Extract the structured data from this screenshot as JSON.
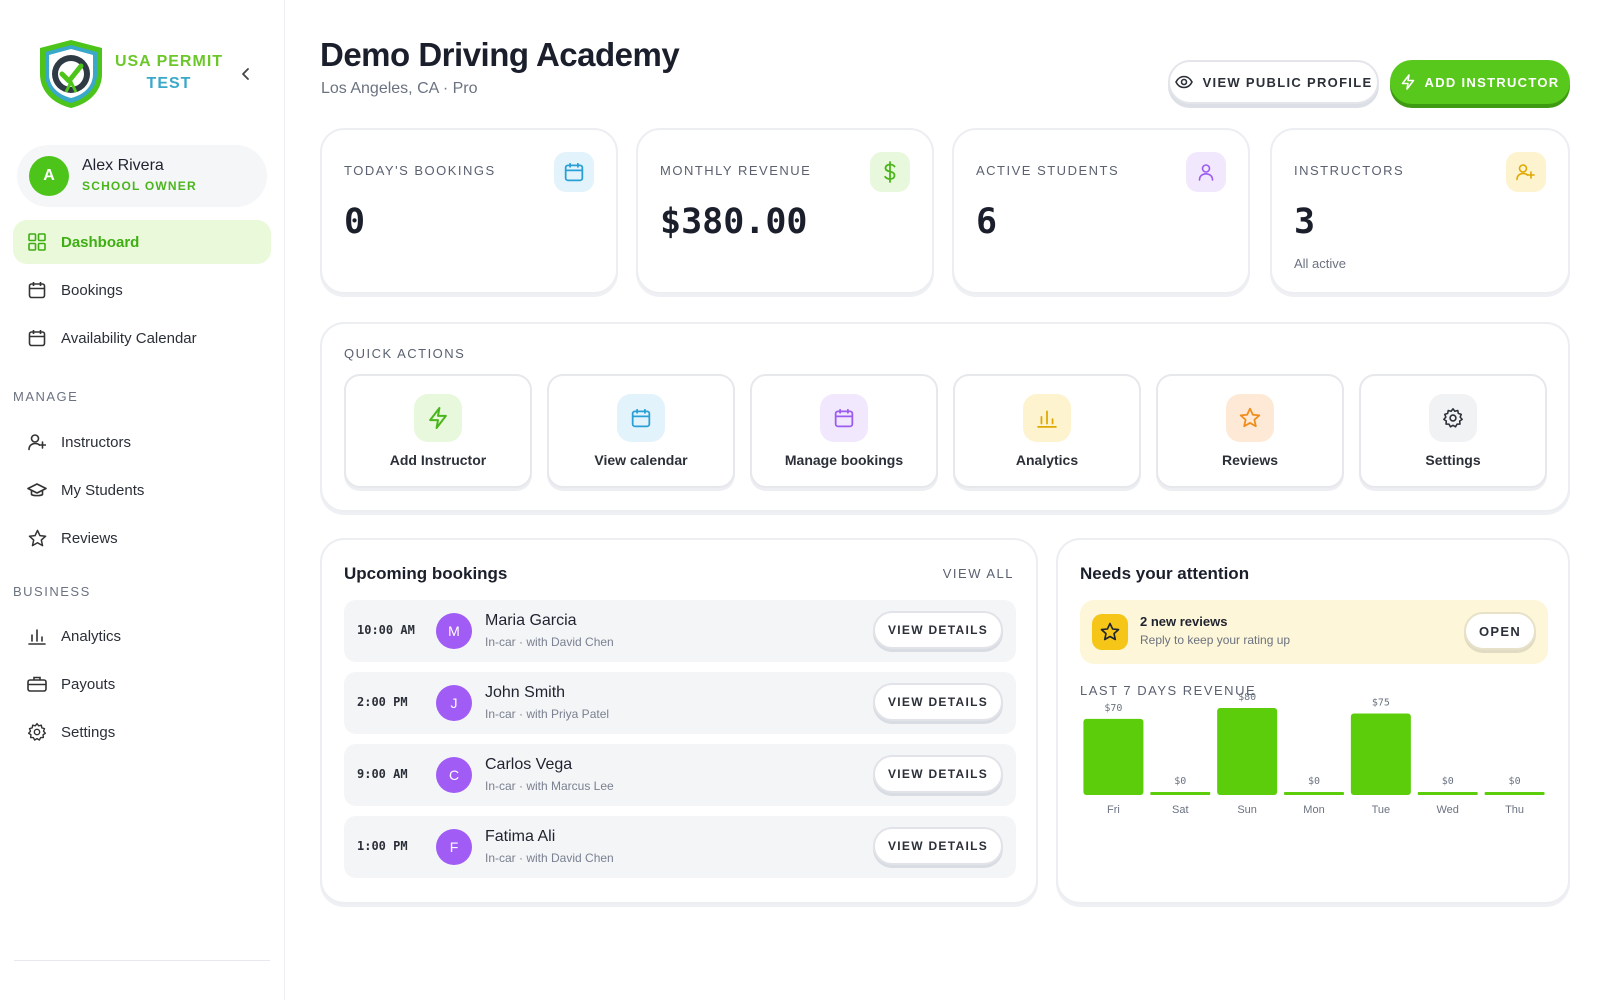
{
  "brand": {
    "line1": "USA PERMIT",
    "line2": "TEST"
  },
  "user": {
    "initial": "A",
    "name": "Alex Rivera",
    "role": "SCHOOL OWNER"
  },
  "nav": {
    "main": [
      {
        "label": "Dashboard",
        "icon": "grid-icon",
        "active": true
      },
      {
        "label": "Bookings",
        "icon": "calendar-icon"
      },
      {
        "label": "Availability Calendar",
        "icon": "calendar-icon"
      }
    ],
    "manage_heading": "MANAGE",
    "manage": [
      {
        "label": "Instructors",
        "icon": "user-plus-icon"
      },
      {
        "label": "My Students",
        "icon": "graduation-cap-icon"
      },
      {
        "label": "Reviews",
        "icon": "star-icon"
      }
    ],
    "business_heading": "BUSINESS",
    "business": [
      {
        "label": "Analytics",
        "icon": "bar-chart-icon"
      },
      {
        "label": "Payouts",
        "icon": "briefcase-icon"
      },
      {
        "label": "Settings",
        "icon": "gear-icon"
      }
    ]
  },
  "header": {
    "title": "Demo Driving Academy",
    "subtitle": "Los Angeles, CA · Pro",
    "view_profile": "VIEW PUBLIC PROFILE",
    "add_instructor": "ADD INSTRUCTOR"
  },
  "stats": [
    {
      "label": "TODAY'S BOOKINGS",
      "value": "0",
      "note": "",
      "icon": "calendar-icon",
      "color": "#2a9fd6",
      "bg": "#e3f3fb"
    },
    {
      "label": "MONTHLY REVENUE",
      "value": "$380.00",
      "note": "",
      "icon": "dollar-icon",
      "color": "#4bb61c",
      "bg": "#e8f8dc"
    },
    {
      "label": "ACTIVE STUDENTS",
      "value": "6",
      "note": "",
      "icon": "user-icon",
      "color": "#9b5cf0",
      "bg": "#f1e8fd"
    },
    {
      "label": "INSTRUCTORS",
      "value": "3",
      "note": "All active",
      "icon": "user-plus-icon",
      "color": "#e0a800",
      "bg": "#fdf4cf"
    }
  ],
  "quick_actions": {
    "title": "QUICK ACTIONS",
    "items": [
      {
        "label": "Add Instructor",
        "icon": "lightning-icon",
        "color": "#4bb61c",
        "bg": "#e8f8dc"
      },
      {
        "label": "View calendar",
        "icon": "calendar-icon",
        "color": "#2a9fd6",
        "bg": "#e3f3fb"
      },
      {
        "label": "Manage bookings",
        "icon": "calendar-icon",
        "color": "#9b5cf0",
        "bg": "#f1e8fd"
      },
      {
        "label": "Analytics",
        "icon": "bar-chart-icon",
        "color": "#e0a800",
        "bg": "#fdf4cf"
      },
      {
        "label": "Reviews",
        "icon": "star-icon",
        "color": "#f08c1a",
        "bg": "#fde9d6"
      },
      {
        "label": "Settings",
        "icon": "gear-icon",
        "color": "#2b2f38",
        "bg": "#f1f2f4"
      }
    ]
  },
  "upcoming": {
    "title": "Upcoming bookings",
    "view_all": "VIEW ALL",
    "button_label": "VIEW DETAILS",
    "rows": [
      {
        "time": "10:00 AM",
        "initial": "M",
        "name": "Maria Garcia",
        "detail": "In-car · with David Chen"
      },
      {
        "time": "2:00 PM",
        "initial": "J",
        "name": "John Smith",
        "detail": "In-car · with Priya Patel"
      },
      {
        "time": "9:00 AM",
        "initial": "C",
        "name": "Carlos Vega",
        "detail": "In-car · with Marcus Lee"
      },
      {
        "time": "1:00 PM",
        "initial": "F",
        "name": "Fatima Ali",
        "detail": "In-car · with David Chen"
      }
    ]
  },
  "attention": {
    "title": "Needs your attention",
    "alert_title": "2 new reviews",
    "alert_sub": "Reply to keep your rating up",
    "alert_button": "OPEN",
    "revenue_title": "LAST 7 DAYS REVENUE"
  },
  "chart_data": {
    "type": "bar",
    "title": "LAST 7 DAYS REVENUE",
    "categories": [
      "Fri",
      "Sat",
      "Sun",
      "Mon",
      "Tue",
      "Wed",
      "Thu"
    ],
    "values": [
      70,
      0,
      80,
      0,
      75,
      0,
      0
    ],
    "data_labels": [
      "$70",
      "$0",
      "$80",
      "$0",
      "$75",
      "$0",
      "$0"
    ],
    "ylim": [
      0,
      80
    ],
    "color": "#5ccd0a",
    "grid": false
  }
}
